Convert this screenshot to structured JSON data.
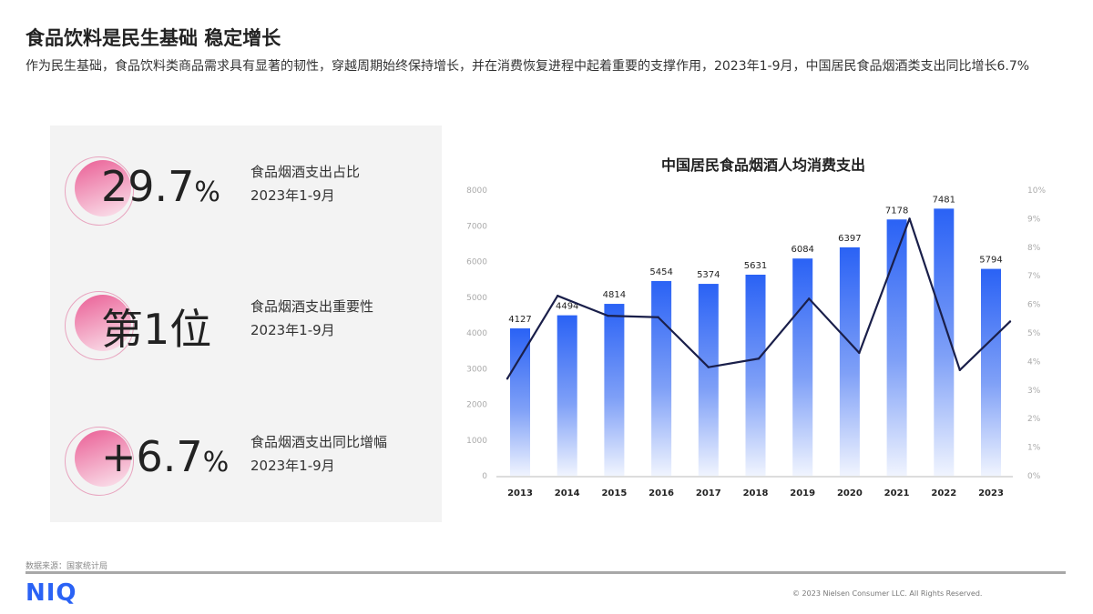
{
  "header": {
    "title": "食品饮料是民生基础 稳定增长",
    "subtitle": "作为民生基础，食品饮料类商品需求具有显著的韧性，穿越周期始终保持增长，并在消费恢复进程中起着重要的支撑作用，2023年1-9月，中国居民食品烟酒类支出同比增长6.7%"
  },
  "stats": [
    {
      "value": "29.7",
      "unit": "%",
      "label": "食品烟酒支出占比",
      "period": "2023年1-9月"
    },
    {
      "value": "第1位",
      "unit": "",
      "label": "食品烟酒支出重要性",
      "period": "2023年1-9月"
    },
    {
      "value": "+6.7",
      "unit": "%",
      "label": "食品烟酒支出同比增幅",
      "period": "2023年1-9月"
    }
  ],
  "colors": {
    "bar": "#2a62f5",
    "line": "#1a1f4a",
    "accent_pink": "#ea5e95",
    "logo": "#2a62f5"
  },
  "chart_data": {
    "type": "bar",
    "title": "中国居民食品烟酒人均消费支出",
    "categories": [
      "2013",
      "2014",
      "2015",
      "2016",
      "2017",
      "2018",
      "2019",
      "2020",
      "2021",
      "2022",
      "2023"
    ],
    "series": [
      {
        "type": "bar",
        "axis": "left",
        "values": [
          4127,
          4494,
          4814,
          5454,
          5374,
          5631,
          6084,
          6397,
          7178,
          7481,
          5794
        ]
      },
      {
        "type": "line",
        "axis": "right",
        "values": [
          3.4,
          6.3,
          5.6,
          5.55,
          3.8,
          4.1,
          6.2,
          4.3,
          9.0,
          3.7,
          5.4
        ]
      }
    ],
    "ylim": [
      0,
      8000
    ],
    "yticks": [
      "0",
      "1000",
      "2000",
      "3000",
      "4000",
      "5000",
      "6000",
      "7000",
      "8000"
    ],
    "y2lim": [
      0,
      10
    ],
    "y2ticks": [
      "0%",
      "1%",
      "2%",
      "3%",
      "4%",
      "5%",
      "6%",
      "7%",
      "8%",
      "9%",
      "10%"
    ],
    "grid": false,
    "legend": "none"
  },
  "footer": {
    "source": "数据来源：国家统计局",
    "logo": "NIQ",
    "copyright": "© 2023 Nielsen Consumer LLC. All Rights Reserved."
  }
}
